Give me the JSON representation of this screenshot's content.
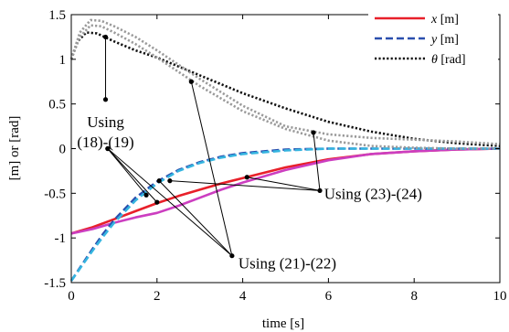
{
  "chart_data": {
    "type": "line",
    "xlabel": "time [s]",
    "ylabel": "[m] or [rad]",
    "xlim": [
      0,
      10
    ],
    "ylim": [
      -1.5,
      1.5
    ],
    "x_ticks": [
      "0",
      "2",
      "4",
      "6",
      "8",
      "10"
    ],
    "y_ticks": [
      "-1.5",
      "-1",
      "-0.5",
      "0",
      "0.5",
      "1",
      "1.5"
    ],
    "grid": false,
    "legend_position": "top-right",
    "legend": [
      {
        "sym": "x",
        "unit": "[m]",
        "color": "#e8202a",
        "dash": "solid"
      },
      {
        "sym": "y",
        "unit": "[m]",
        "color": "#2a4fae",
        "dash": "dashed"
      },
      {
        "sym": "θ",
        "unit": "[rad]",
        "color": "#111111",
        "dash": "dotted"
      }
    ],
    "series": [
      {
        "color": "#e8202a",
        "dash": "solid",
        "x": [
          0,
          0.5,
          1,
          1.5,
          2,
          2.5,
          3,
          3.5,
          4,
          5,
          6,
          7,
          8,
          9,
          10
        ],
        "y": [
          -0.95,
          -0.88,
          -0.79,
          -0.7,
          -0.61,
          -0.53,
          -0.46,
          -0.39,
          -0.33,
          -0.21,
          -0.12,
          -0.06,
          -0.03,
          -0.01,
          0.0
        ]
      },
      {
        "color": "#cc3ec0",
        "dash": "solid",
        "x": [
          0,
          0.5,
          1,
          1.5,
          2,
          2.5,
          3,
          3.5,
          4,
          5,
          6,
          7,
          8,
          9,
          10
        ],
        "y": [
          -0.95,
          -0.9,
          -0.83,
          -0.77,
          -0.72,
          -0.64,
          -0.55,
          -0.46,
          -0.38,
          -0.24,
          -0.13,
          -0.06,
          -0.03,
          -0.01,
          0.0
        ]
      },
      {
        "color": "#2a4fae",
        "dash": "dashed",
        "x": [
          0,
          0.25,
          0.5,
          0.75,
          1,
          1.5,
          2,
          2.5,
          3,
          3.5,
          4,
          5,
          6,
          7,
          8,
          9,
          10
        ],
        "y": [
          -1.48,
          -1.3,
          -1.12,
          -0.95,
          -0.8,
          -0.55,
          -0.37,
          -0.24,
          -0.15,
          -0.09,
          -0.05,
          -0.01,
          0.0,
          0.0,
          0.0,
          0.0,
          0.0
        ]
      },
      {
        "color": "#35b5e0",
        "dash": "dashed",
        "x": [
          0,
          0.25,
          0.5,
          0.75,
          1,
          1.5,
          2,
          2.5,
          3,
          3.5,
          4,
          5,
          6,
          7,
          8,
          9,
          10
        ],
        "y": [
          -1.48,
          -1.31,
          -1.14,
          -0.98,
          -0.83,
          -0.58,
          -0.39,
          -0.25,
          -0.16,
          -0.1,
          -0.06,
          -0.02,
          0.0,
          0.0,
          0.0,
          0.0,
          0.0
        ]
      },
      {
        "color": "#111111",
        "dash": "dotted",
        "x": [
          0,
          0.15,
          0.35,
          0.6,
          1,
          1.5,
          2,
          3,
          4,
          5,
          6,
          7,
          8,
          9,
          10
        ],
        "y": [
          1.0,
          1.2,
          1.3,
          1.29,
          1.2,
          1.1,
          1.02,
          0.82,
          0.62,
          0.45,
          0.3,
          0.19,
          0.11,
          0.06,
          0.03
        ]
      },
      {
        "color": "#9a9a9a",
        "dash": "dotted",
        "x": [
          0,
          0.2,
          0.45,
          0.7,
          1,
          1.5,
          2,
          3,
          4,
          5,
          6,
          7,
          8,
          9,
          10
        ],
        "y": [
          1.0,
          1.3,
          1.44,
          1.43,
          1.37,
          1.25,
          1.1,
          0.78,
          0.48,
          0.25,
          0.16,
          0.12,
          0.1,
          0.08,
          0.05
        ]
      },
      {
        "color": "#9a9a9a",
        "dash": "dotted",
        "x": [
          0,
          0.2,
          0.45,
          0.7,
          1,
          1.5,
          2,
          3,
          4,
          5,
          6,
          7,
          8,
          9,
          10
        ],
        "y": [
          1.0,
          1.25,
          1.38,
          1.37,
          1.3,
          1.17,
          1.02,
          0.7,
          0.42,
          0.22,
          0.09,
          0.03,
          0.01,
          0.0,
          0.0
        ]
      }
    ],
    "annotations": [
      {
        "lines": [
          "Using",
          "(18)-(19)"
        ],
        "text_anchor": [
          0.8,
          0.3
        ],
        "pivot": [
          0.8,
          0.55
        ],
        "targets": [
          [
            0.8,
            1.25
          ]
        ]
      },
      {
        "lines": [
          "Using (23)-(24)"
        ],
        "text_anchor": [
          5.9,
          -0.5
        ],
        "pivot": [
          5.8,
          -0.47
        ],
        "targets": [
          [
            2.3,
            -0.36
          ],
          [
            4.1,
            -0.32
          ],
          [
            5.65,
            0.18
          ]
        ]
      },
      {
        "lines": [
          "Using (21)-(22)"
        ],
        "text_anchor": [
          3.9,
          -1.28
        ],
        "pivot": [
          3.75,
          -1.2
        ],
        "targets": [
          [
            0.85,
            0.0
          ],
          [
            2.05,
            -0.36
          ],
          [
            2.8,
            0.75
          ]
        ]
      },
      {
        "lines": [],
        "text_anchor": null,
        "pivot": [
          0.85,
          0.0
        ],
        "targets": [
          [
            1.75,
            -0.52
          ],
          [
            2.0,
            -0.6
          ]
        ]
      }
    ]
  }
}
